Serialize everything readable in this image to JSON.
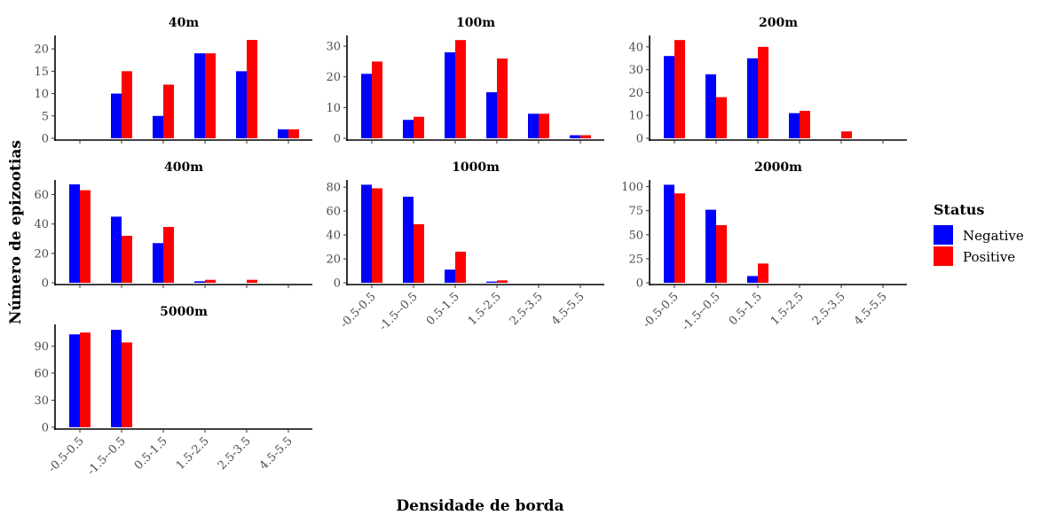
{
  "chart_data": {
    "type": "bar",
    "xlabel": "Densidade de borda",
    "ylabel": "Número de epizootias",
    "legend": {
      "title": "Status",
      "placement": "right",
      "entries": [
        {
          "name": "Negative",
          "color": "#0000FF"
        },
        {
          "name": "Positive",
          "color": "#FF0000"
        }
      ]
    },
    "grid": false,
    "categories": [
      "-0.5-0.5",
      "-1.5--0.5",
      "0.5-1.5",
      "1.5-2.5",
      "2.5-3.5",
      "4.5-5.5"
    ],
    "panels": [
      {
        "title": "40m",
        "ylim": [
          0,
          23
        ],
        "yticks": [
          0,
          5,
          10,
          15,
          20
        ],
        "series": [
          {
            "name": "Negative",
            "values": [
              0,
              10,
              5,
              19,
              15,
              2
            ]
          },
          {
            "name": "Positive",
            "values": [
              0,
              15,
              12,
              19,
              22,
              2
            ]
          }
        ]
      },
      {
        "title": "100m",
        "ylim": [
          0,
          33.5
        ],
        "yticks": [
          0,
          10,
          20,
          30
        ],
        "series": [
          {
            "name": "Negative",
            "values": [
              21,
              6,
              28,
              15,
              8,
              1
            ]
          },
          {
            "name": "Positive",
            "values": [
              25,
              7,
              32,
              26,
              8,
              1
            ]
          }
        ]
      },
      {
        "title": "200m",
        "ylim": [
          0,
          45
        ],
        "yticks": [
          0,
          10,
          20,
          30,
          40
        ],
        "series": [
          {
            "name": "Negative",
            "values": [
              36,
              28,
              35,
              11,
              0,
              0
            ]
          },
          {
            "name": "Positive",
            "values": [
              43,
              18,
              40,
              12,
              3,
              0
            ]
          }
        ]
      },
      {
        "title": "400m",
        "ylim": [
          0,
          70
        ],
        "yticks": [
          0,
          20,
          40,
          60
        ],
        "series": [
          {
            "name": "Negative",
            "values": [
              67,
              45,
              27,
              1,
              0,
              0
            ]
          },
          {
            "name": "Positive",
            "values": [
              63,
              32,
              38,
              2,
              2,
              0
            ]
          }
        ]
      },
      {
        "title": "1000m",
        "ylim": [
          0,
          86
        ],
        "yticks": [
          0,
          20,
          40,
          60,
          80
        ],
        "series": [
          {
            "name": "Negative",
            "values": [
              82,
              72,
              11,
              1,
              0,
              0
            ]
          },
          {
            "name": "Positive",
            "values": [
              79,
              49,
              26,
              2,
              0,
              0
            ]
          }
        ]
      },
      {
        "title": "2000m",
        "ylim": [
          0,
          107
        ],
        "yticks": [
          0,
          25,
          50,
          75,
          100
        ],
        "series": [
          {
            "name": "Negative",
            "values": [
              102,
              76,
              7,
              0,
              0,
              0
            ]
          },
          {
            "name": "Positive",
            "values": [
              93,
              60,
              20,
              0,
              0,
              0
            ]
          }
        ]
      },
      {
        "title": "5000m",
        "ylim": [
          0,
          114
        ],
        "yticks": [
          0,
          30,
          60,
          90
        ],
        "series": [
          {
            "name": "Negative",
            "values": [
              103,
              108,
              0,
              0,
              0,
              0
            ]
          },
          {
            "name": "Positive",
            "values": [
              105,
              94,
              0,
              0,
              0,
              0
            ]
          }
        ]
      }
    ]
  }
}
